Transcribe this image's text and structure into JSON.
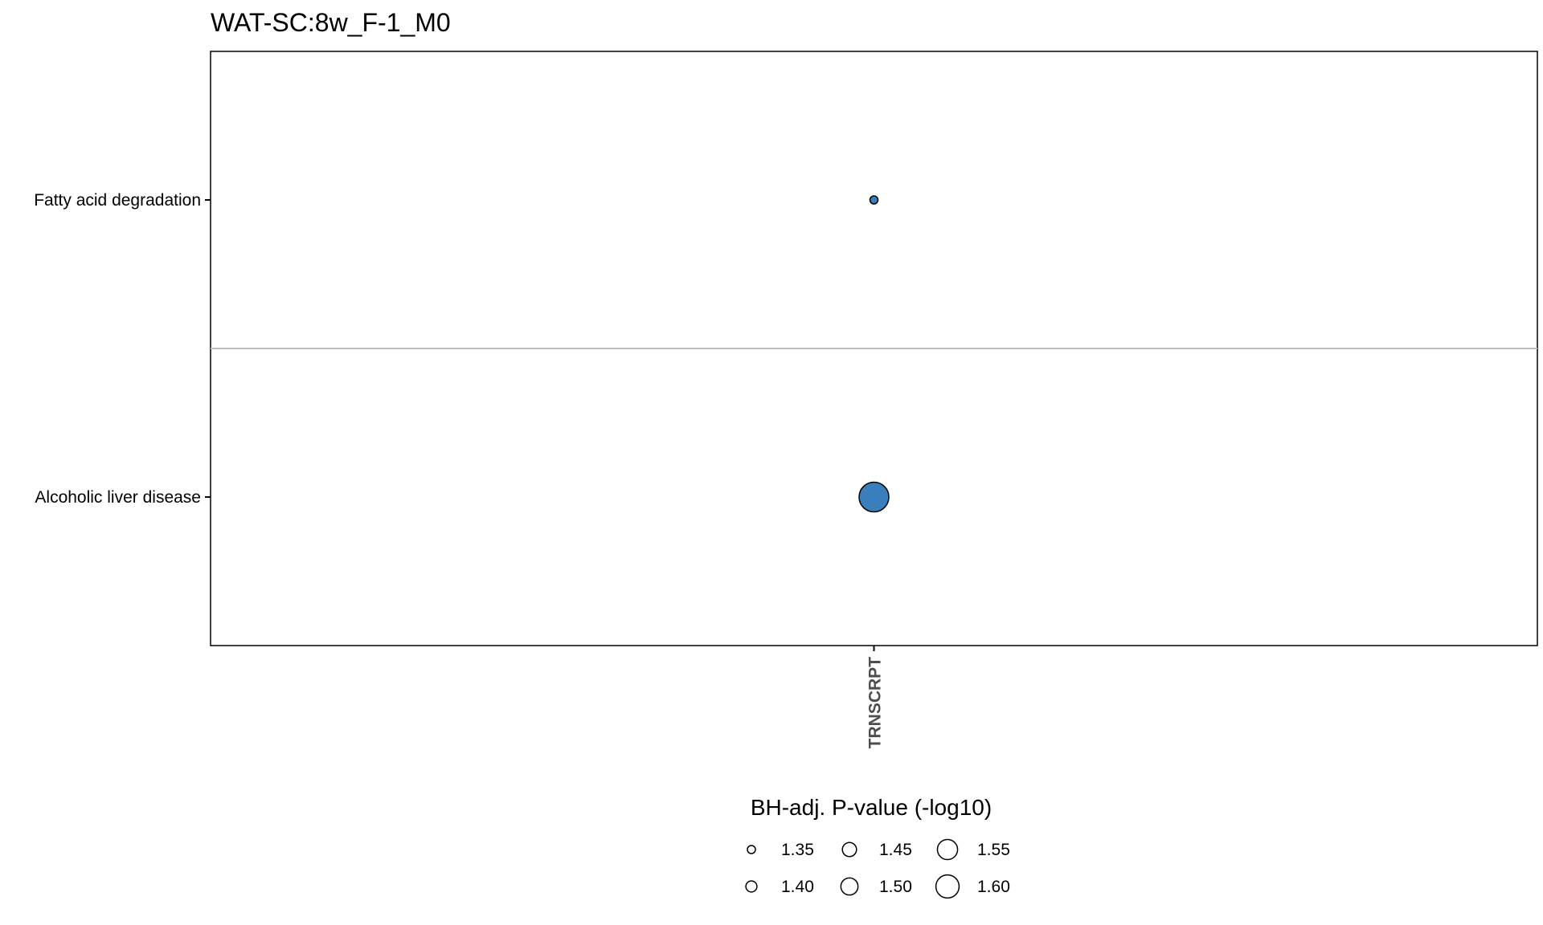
{
  "chart_data": {
    "type": "scatter",
    "title": "WAT-SC:8w_F-1_M0",
    "x_categories": [
      "TRNSCRPT"
    ],
    "y_categories": [
      "Fatty acid degradation",
      "Alcoholic liver disease"
    ],
    "points": [
      {
        "x": "TRNSCRPT",
        "y": "Fatty acid degradation",
        "size_value": 1.32
      },
      {
        "x": "TRNSCRPT",
        "y": "Alcoholic liver disease",
        "size_value": 1.6
      }
    ],
    "point_fill": "#3a7fbb",
    "point_stroke": "#000000",
    "grid": "horizontal separator between rows",
    "legend": {
      "title": "BH-adj. P-value (-log10)",
      "position": "bottom",
      "entries": [
        {
          "label": "1.35",
          "value": 1.35
        },
        {
          "label": "1.40",
          "value": 1.4
        },
        {
          "label": "1.45",
          "value": 1.45
        },
        {
          "label": "1.50",
          "value": 1.5
        },
        {
          "label": "1.55",
          "value": 1.55
        },
        {
          "label": "1.60",
          "value": 1.6
        }
      ]
    }
  }
}
